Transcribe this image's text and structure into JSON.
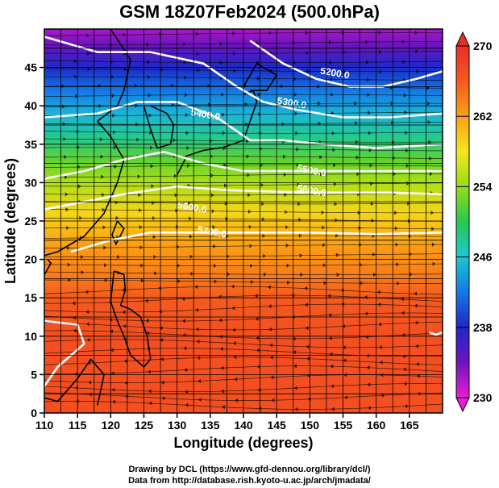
{
  "chart_data": {
    "type": "heatmap",
    "title": "GSM 18Z07Feb2024 (500.0hPa)",
    "xlabel": "Longitude (degrees)",
    "ylabel": "Latitude  (degrees)",
    "xlim": [
      110,
      170
    ],
    "ylim": [
      0,
      50
    ],
    "x_ticks": [
      "110",
      "115",
      "120",
      "125",
      "130",
      "135",
      "140",
      "145",
      "150",
      "155",
      "160",
      "165"
    ],
    "y_ticks": [
      "0",
      "5",
      "10",
      "15",
      "20",
      "25",
      "30",
      "35",
      "40",
      "45"
    ],
    "grid": true,
    "colorbar": {
      "min": 230,
      "max": 270,
      "tick_labels": [
        "230",
        "238",
        "246",
        "254",
        "262",
        "270"
      ],
      "placement": "right"
    },
    "temperature_profile": {
      "lat": [
        0,
        5,
        10,
        15,
        18,
        22,
        26,
        30,
        33,
        36,
        39,
        42,
        45,
        48,
        50
      ],
      "value": [
        267,
        267,
        267,
        266,
        264,
        262,
        259,
        255,
        252,
        248,
        245,
        242,
        238,
        234,
        232
      ]
    },
    "height_contours": [
      {
        "label": "5200.0",
        "lon": [
          141,
          146,
          151,
          156,
          161,
          166,
          170
        ],
        "lat": [
          48.5,
          45.5,
          43.5,
          42.5,
          42.5,
          43.5,
          44.5
        ]
      },
      {
        "label": "5300.0",
        "lon": [
          110,
          118,
          126,
          134,
          139,
          143,
          148,
          155,
          162,
          170
        ],
        "lat": [
          49,
          47,
          47,
          45.5,
          42.5,
          40.5,
          39.5,
          38.5,
          38.5,
          39
        ]
      },
      {
        "label": "5400.0",
        "lon": [
          110,
          118,
          124,
          130,
          136,
          141,
          146,
          152,
          160,
          170
        ],
        "lat": [
          38.5,
          39,
          40.5,
          40.5,
          38.5,
          35.5,
          35.5,
          35,
          34.5,
          35
        ]
      },
      {
        "label": "5500.0",
        "lon": [
          110,
          116,
          122,
          128,
          134,
          140,
          146,
          154,
          162,
          170
        ],
        "lat": [
          30.5,
          31.5,
          33,
          34,
          32.5,
          31.5,
          31.5,
          31.5,
          31.5,
          31.5
        ]
      },
      {
        "label": "5600.0",
        "lon": [
          110,
          116,
          122,
          130,
          138,
          146,
          154,
          162,
          170
        ],
        "lat": [
          26.5,
          27.5,
          28.5,
          29.5,
          29,
          28.8,
          28.7,
          28.7,
          28.5
        ]
      },
      {
        "label": "5700.0",
        "lon": [
          114,
          120,
          126,
          132,
          140,
          150,
          160,
          170
        ],
        "lat": [
          21,
          22.5,
          23.5,
          23.5,
          23.5,
          23.5,
          23.3,
          23.5
        ]
      },
      {
        "label": "",
        "lon": [
          110,
          115,
          116,
          112,
          110
        ],
        "lat": [
          12,
          11.5,
          9,
          6,
          3.5
        ]
      },
      {
        "label": "",
        "lon": [
          168,
          169,
          170
        ],
        "lat": [
          10.5,
          10.2,
          10.5
        ]
      }
    ],
    "contour_label_positions": [
      {
        "label": "5200.0",
        "lon": 151.5,
        "lat": 44.2
      },
      {
        "label": "5300.0",
        "lon": 145,
        "lat": 40.3
      },
      {
        "label": "5400.0",
        "lon": 132,
        "lat": 38.8
      },
      {
        "label": "5500.0",
        "lon": 148,
        "lat": 31.5
      },
      {
        "label": "5600.0",
        "lon": 148,
        "lat": 28.9
      },
      {
        "label": "5600.0",
        "lon": 130,
        "lat": 26.7
      },
      {
        "label": "5700.0",
        "lon": 133,
        "lat": 23.5
      }
    ]
  },
  "footer": {
    "credit_drawing": "Drawing by DCL (https://www.gfd-dennou.org/library/dcl/)",
    "credit_data": "Data from http://database.rish.kyoto-u.ac.jp/arch/jmadata/"
  }
}
